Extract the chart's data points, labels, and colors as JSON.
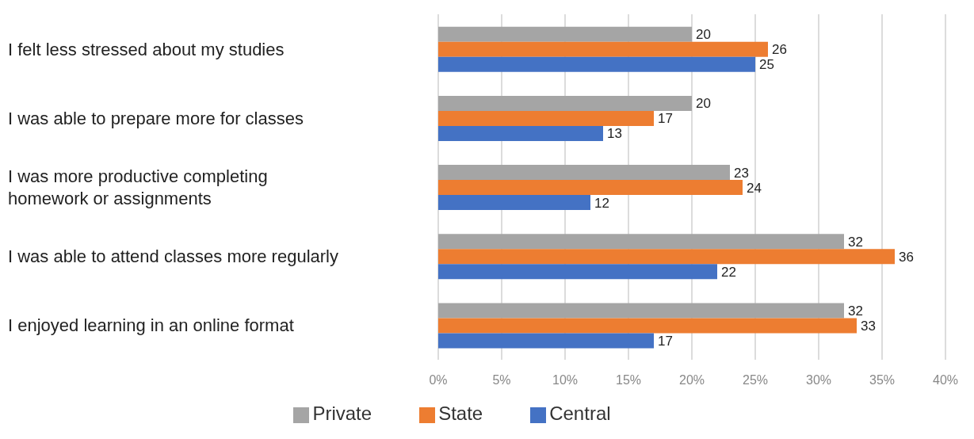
{
  "chart_data": {
    "type": "bar",
    "orientation": "horizontal",
    "categories": [
      "I felt less stressed about my studies",
      "I was able to prepare more for classes",
      "I was more productive completing\nhomework or assignments",
      "I was able to attend classes more regularly",
      "I enjoyed learning in an online format"
    ],
    "series": [
      {
        "name": "Private",
        "color": "#a5a5a5",
        "values": [
          20,
          20,
          23,
          32,
          32
        ]
      },
      {
        "name": "State",
        "color": "#ed7d31",
        "values": [
          26,
          17,
          24,
          36,
          33
        ]
      },
      {
        "name": "Central",
        "color": "#4472c4",
        "values": [
          25,
          13,
          12,
          22,
          17
        ]
      }
    ],
    "xlim": [
      0,
      40
    ],
    "xticks": [
      {
        "value": 0,
        "label": "0%"
      },
      {
        "value": 5,
        "label": "5%"
      },
      {
        "value": 10,
        "label": "10%"
      },
      {
        "value": 15,
        "label": "15%"
      },
      {
        "value": 20,
        "label": "20%"
      },
      {
        "value": 25,
        "label": "25%"
      },
      {
        "value": 30,
        "label": "30%"
      },
      {
        "value": 35,
        "label": "35%"
      },
      {
        "value": 40,
        "label": "40%"
      }
    ],
    "grid": "x",
    "legend": "bottom",
    "data_labels": true
  }
}
